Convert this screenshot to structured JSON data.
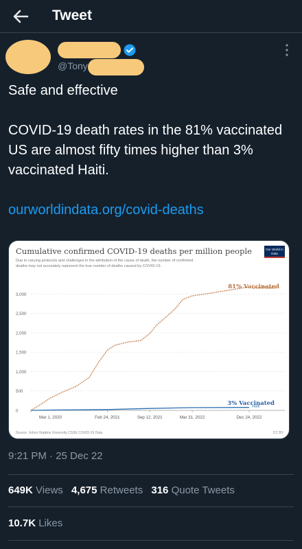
{
  "header": {
    "title": "Tweet"
  },
  "author": {
    "handle": "@Tony"
  },
  "tweet": {
    "line1": "Safe and effective",
    "line2": "COVID-19 death rates in the 81% vaccinated US are almost fifty times higher than 3% vaccinated Haiti.",
    "link": "ourworldindata.org/covid-deaths"
  },
  "meta": {
    "time": "9:21 PM · 25 Dec 22"
  },
  "stats": {
    "views_count": "649K",
    "views_label": "Views",
    "retweets_count": "4,675",
    "retweets_label": "Retweets",
    "quotes_count": "316",
    "quotes_label": "Quote Tweets",
    "likes_count": "10.7K",
    "likes_label": "Likes"
  },
  "colors": {
    "background": "#15202b",
    "link": "#1d9bf0",
    "placeholder": "#f7c97b",
    "us_line": "#c27a45",
    "haiti_line": "#2a6eb3"
  },
  "chart_data": {
    "type": "line",
    "title": "Cumulative confirmed COVID-19 deaths per million people",
    "subtitle": "Due to varying protocols and challenges in the attribution of the cause of death, the number of confirmed deaths may not accurately represent the true number of deaths caused by COVID-19.",
    "logo": "Our World in Data",
    "source": "Source: Johns Hopkins University CSSE COVID-19 Data",
    "license": "CC BY",
    "xlabel": "",
    "ylabel": "",
    "yticks": [
      "3,000",
      "2,500",
      "2,000",
      "1,500",
      "1,000",
      "500",
      "0"
    ],
    "ytick_values": [
      3000,
      2500,
      2000,
      1500,
      1000,
      500,
      0
    ],
    "ylim": [
      0,
      3200
    ],
    "xticks": [
      "Mar 1, 2020",
      "Feb 24, 2021",
      "Sep 12, 2021",
      "Mar 31, 2022",
      "Dec 24, 2022"
    ],
    "xtick_values": [
      "2020-03-01",
      "2021-02-24",
      "2021-09-12",
      "2022-03-31",
      "2022-12-24"
    ],
    "annotations": [
      "81% Vaccinated",
      "3% Vaccinated"
    ],
    "series": [
      {
        "name": "United States",
        "x": [
          "2020-03-01",
          "2020-04-15",
          "2020-06-01",
          "2020-08-01",
          "2020-10-01",
          "2020-12-01",
          "2021-01-15",
          "2021-02-24",
          "2021-04-01",
          "2021-06-01",
          "2021-08-01",
          "2021-09-12",
          "2021-10-15",
          "2021-12-01",
          "2022-01-15",
          "2022-02-15",
          "2022-03-31",
          "2022-06-01",
          "2022-09-01",
          "2022-12-24"
        ],
        "y": [
          0,
          150,
          320,
          480,
          620,
          850,
          1250,
          1550,
          1680,
          1760,
          1800,
          1980,
          2200,
          2420,
          2650,
          2860,
          2950,
          3000,
          3080,
          3180
        ]
      },
      {
        "name": "Haiti",
        "x": [
          "2020-03-01",
          "2020-06-01",
          "2021-02-24",
          "2021-09-12",
          "2022-03-31",
          "2022-12-24"
        ],
        "y": [
          0,
          8,
          22,
          50,
          70,
          76
        ]
      }
    ]
  }
}
